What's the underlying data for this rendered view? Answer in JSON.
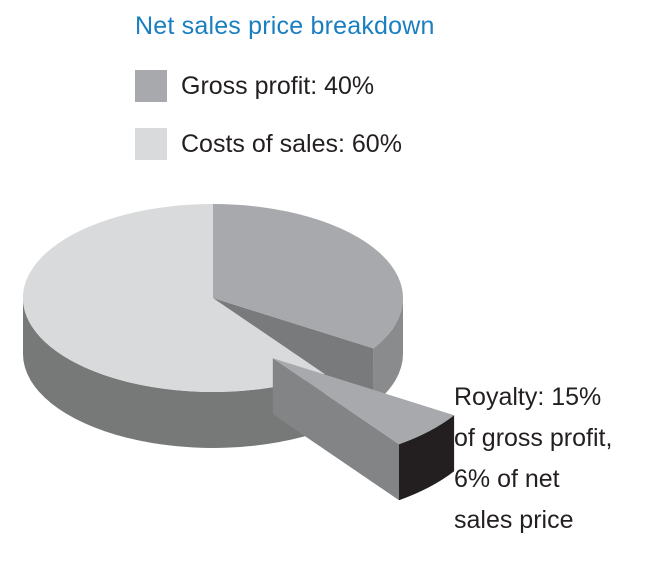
{
  "chart_data": {
    "type": "pie",
    "title": "Net sales price breakdown",
    "slices": [
      {
        "label": "Gross profit: 40%",
        "value": 40,
        "color": "#a7a9ac"
      },
      {
        "label": "Costs of sales: 60%",
        "value": 60,
        "color": "#d9dadb"
      }
    ],
    "exploded_slice": {
      "parent": "Gross profit",
      "share_of_parent_percent": 15,
      "share_of_total_percent": 6,
      "color": "#a7a9ac",
      "dark_color": "#231f20",
      "label_lines": [
        "Royalty: 15%",
        "of gross profit,",
        "6% of net",
        "sales price"
      ]
    },
    "legend": "top-left",
    "style": "3d"
  }
}
